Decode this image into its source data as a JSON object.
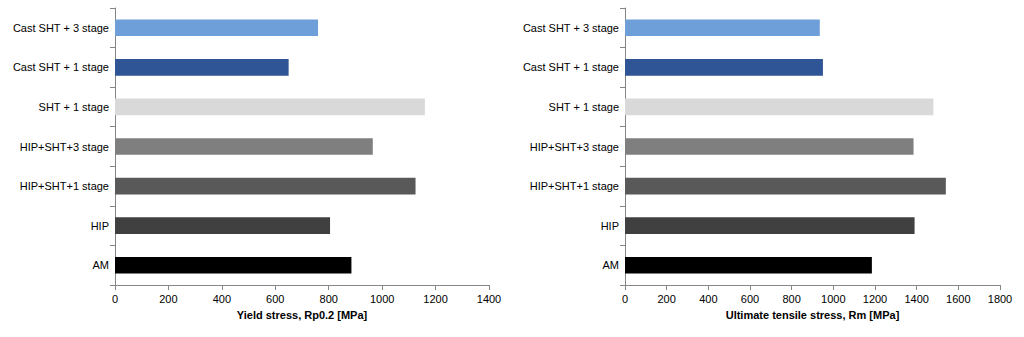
{
  "chart_data": [
    {
      "type": "bar",
      "orientation": "horizontal",
      "grid": false,
      "xlabel": "Yield stress, Rp0.2 [MPa]",
      "categories": [
        "Cast SHT + 3 stage",
        "Cast SHT + 1 stage",
        "SHT + 1 stage",
        "HIP+SHT+3 stage",
        "HIP+SHT+1 stage",
        "HIP",
        "AM"
      ],
      "values": [
        760,
        650,
        1160,
        965,
        1125,
        805,
        885
      ],
      "colors": [
        "#6f9fd8",
        "#2f5597",
        "#d9d9d9",
        "#7f7f7f",
        "#595959",
        "#404040",
        "#000000"
      ],
      "xlim": [
        0,
        1400
      ],
      "xticks": [
        0,
        200,
        400,
        600,
        800,
        1000,
        1200,
        1400
      ]
    },
    {
      "type": "bar",
      "orientation": "horizontal",
      "grid": false,
      "xlabel": "Ultimate tensile stress, Rm [MPa]",
      "categories": [
        "Cast SHT + 3 stage",
        "Cast SHT + 1 stage",
        "SHT + 1 stage",
        "HIP+SHT+3 stage",
        "HIP+SHT+1 stage",
        "HIP",
        "AM"
      ],
      "values": [
        935,
        950,
        1480,
        1385,
        1540,
        1390,
        1185
      ],
      "colors": [
        "#6f9fd8",
        "#2f5597",
        "#d9d9d9",
        "#7f7f7f",
        "#595959",
        "#404040",
        "#000000"
      ],
      "xlim": [
        0,
        1800
      ],
      "xticks": [
        0,
        200,
        400,
        600,
        800,
        1000,
        1200,
        1400,
        1600,
        1800
      ]
    }
  ]
}
